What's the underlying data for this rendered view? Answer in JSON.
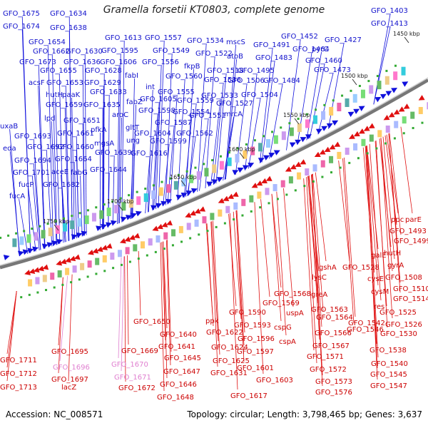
{
  "title": "Gramella forsetii KT0803, complete genome",
  "footer": {
    "accession": "Accession: NC_008571",
    "stats": "Topology: circular; Length: 3,798,465 bp; Genes: 3,637"
  },
  "colors": {
    "forward": "#1010dd",
    "reverse": "#e01010",
    "forward_label": "#1010cc",
    "reverse_label": "#cc0000",
    "pseudo_label": "#e080d0",
    "backbone": "#777777",
    "kbp_label": "#222222"
  },
  "kbp_labels": [
    "1450 kbp",
    "1500 kbp",
    "1550 kbp",
    "1600 kbp",
    "1650 kbp",
    "1700 kbp",
    "1750 kbp"
  ],
  "forward_labels": [
    "GFO_1675",
    "GFO_1634",
    "GFO_1674",
    "GFO_1638",
    "GFO_1654",
    "GFO_1613",
    "GFO_1557",
    "GFO_1534",
    "mscS",
    "GFO_1491",
    "GFO_1662",
    "GFO_1630",
    "GFO_1595",
    "GFO_1549",
    "GFO_1522",
    "atoB",
    "GFO_1483",
    "GFO_1673",
    "GFO_1636",
    "GFO_1606",
    "GFO_1556",
    "fkpB",
    "GFO_1518",
    "GFO_1495",
    "GFO_1655",
    "GFO_1628",
    "fabI",
    "GFO_1560",
    "GFO_1536",
    "GFO_1506",
    "GFO_1484",
    "acsF",
    "GFO_1653",
    "GFO_1629",
    "int",
    "hutH",
    "paaK",
    "GFO_1633",
    "GFO_1555",
    "GFO_1533",
    "GFO_1504",
    "GFO_1659",
    "GFO_1635",
    "fabZ",
    "GFO_1605",
    "GFO_1559",
    "GFO_1527",
    "lpd",
    "GFO_1651",
    "aroC",
    "GFO_1598",
    "GFO_1554",
    "mrcA",
    "uxaB",
    "GFO_1661",
    "pfkA",
    "gltT",
    "GFO_1587",
    "GFO_1551",
    "GFO_1693",
    "GFO_1604",
    "GFO_1562",
    "eda",
    "GFO_1692",
    "GFO_1660",
    "mgsA",
    "ung",
    "GFO_1599",
    "GFO_1694",
    "GFO_1664",
    "GFO_1639",
    "GFO_1616",
    "GFO_1701",
    "aceE",
    "fabG",
    "GFO_1644",
    "fucP",
    "GFO_1682",
    "fucA",
    "GFO_1403",
    "GFO_1413",
    "GFO_1452",
    "GFO_1427",
    "GFO_1464",
    "pyrC",
    "GFO_1460",
    "GFO_1473"
  ],
  "reverse_labels": [
    "ppc",
    "parE",
    "GFO_1493",
    "GFO_1499",
    "hutH",
    "galE",
    "gyrA",
    "GFO_1528",
    "GFO_1508",
    "cysE",
    "GFO_1510",
    "cysM",
    "GFO_1514",
    "res",
    "GFO_1525",
    "GFO_1542",
    "GFO_1526",
    "GFO_1546",
    "GFO_1530",
    "gshA",
    "GFO_1568",
    "lysC",
    "GFO_1569",
    "greA",
    "GFO_1563",
    "GFO_1590",
    "uspA",
    "GFO_1564",
    "ppk",
    "GFO_1650",
    "GFO_1593",
    "cspG",
    "GFO_1566",
    "GFO_1640",
    "GFO_1622",
    "GFO_1596",
    "cspA",
    "GFO_1567",
    "GFO_1641",
    "GFO_1624",
    "GFO_1597",
    "GFO_1571",
    "GFO_1669",
    "GFO_1645",
    "GFO_1625",
    "GFO_1601",
    "GFO_1572",
    "GFO_1647",
    "GFO_1631",
    "GFO_1603",
    "GFO_1573",
    "GFO_1646",
    "GFO_1576",
    "GFO_1648",
    "GFO_1617",
    "GFO_1538",
    "GFO_1540",
    "GFO_1545",
    "GFO_1547",
    "GFO_1711",
    "GFO_1695",
    "GFO_1712",
    "GFO_1697",
    "GFO_1713",
    "lacZ",
    "GFO_1672"
  ],
  "pseudo_labels": [
    "GFO_1696",
    "GFO_1670",
    "GFO_1671"
  ]
}
